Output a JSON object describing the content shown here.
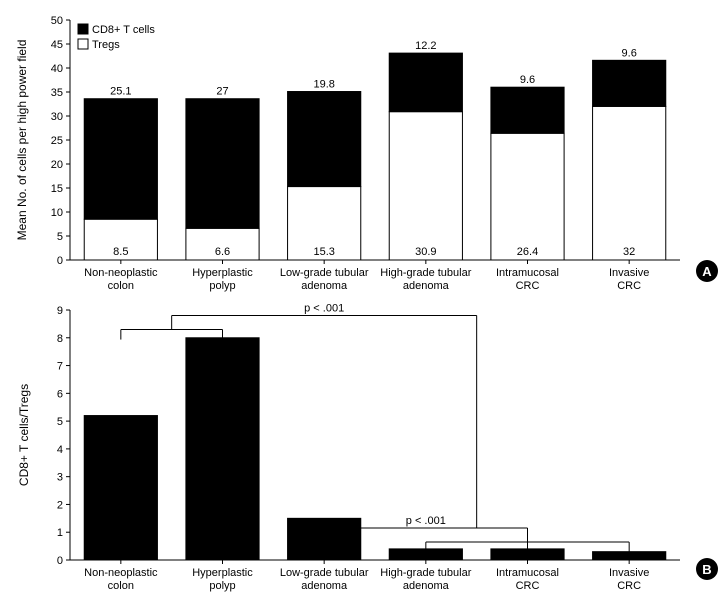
{
  "chartA": {
    "type": "stacked-bar",
    "y_axis_label": "Mean No. of cells per high power field",
    "ylim": [
      0,
      50
    ],
    "ytick_step": 5,
    "bar_width": 0.72,
    "background_color": "#ffffff",
    "axis_color": "#000000",
    "legend": [
      {
        "label": "CD8+ T cells",
        "fill": "#000000",
        "stroke": "#000000"
      },
      {
        "label": "Tregs",
        "fill": "#ffffff",
        "stroke": "#000000"
      }
    ],
    "categories": [
      {
        "line1": "Non-neoplastic",
        "line2": "colon"
      },
      {
        "line1": "Hyperplastic",
        "line2": "polyp"
      },
      {
        "line1": "Low-grade tubular",
        "line2": "adenoma"
      },
      {
        "line1": "High-grade tubular",
        "line2": "adenoma"
      },
      {
        "line1": "Intramucosal",
        "line2": "CRC"
      },
      {
        "line1": "Invasive",
        "line2": "CRC"
      }
    ],
    "series_tregs": {
      "color_fill": "#ffffff",
      "color_stroke": "#000000",
      "values": [
        8.5,
        6.6,
        15.3,
        30.9,
        26.4,
        32
      ]
    },
    "series_cd8": {
      "color_fill": "#000000",
      "color_stroke": "#000000",
      "values": [
        25.1,
        27,
        19.8,
        12.2,
        9.6,
        9.6
      ]
    },
    "panel_label": "A"
  },
  "chartB": {
    "type": "bar",
    "y_axis_label": "CD8+ T cells/Tregs",
    "ylim": [
      0,
      9
    ],
    "ytick_step": 1,
    "bar_width": 0.72,
    "bar_fill": "#000000",
    "bar_stroke": "#000000",
    "background_color": "#ffffff",
    "axis_color": "#000000",
    "categories": [
      {
        "line1": "Non-neoplastic",
        "line2": "colon"
      },
      {
        "line1": "Hyperplastic",
        "line2": "polyp"
      },
      {
        "line1": "Low-grade tubular",
        "line2": "adenoma"
      },
      {
        "line1": "High-grade tubular",
        "line2": "adenoma"
      },
      {
        "line1": "Intramucosal",
        "line2": "CRC"
      },
      {
        "line1": "Invasive",
        "line2": "CRC"
      }
    ],
    "values": [
      5.2,
      8.0,
      1.5,
      0.4,
      0.4,
      0.3
    ],
    "pvalues": [
      {
        "text": "p < .001",
        "group_a": [
          0,
          1
        ],
        "group_b": [
          2,
          3,
          4,
          5
        ],
        "y_level": 8.8
      },
      {
        "text": "p < .001",
        "group_a": [
          2
        ],
        "group_b": [
          3,
          4,
          5
        ],
        "y_level": 1.15
      }
    ],
    "panel_label": "B"
  }
}
